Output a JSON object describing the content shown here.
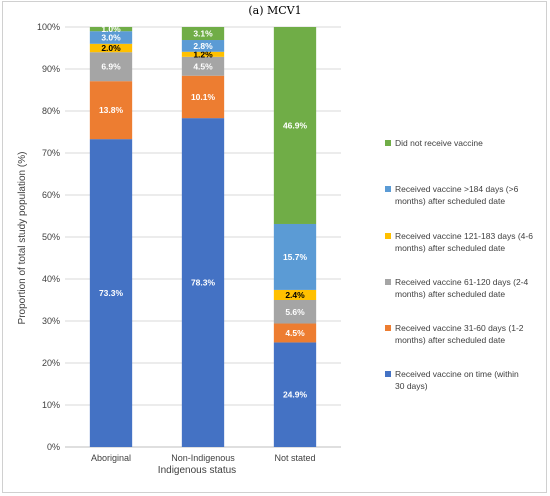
{
  "chart_data": {
    "type": "bar",
    "stacked": true,
    "title": "(a) MCV1",
    "xlabel": "Indigenous status",
    "ylabel": "Proportion of total study population (%)",
    "ylim": [
      0,
      100
    ],
    "yticks": [
      "0%",
      "10%",
      "20%",
      "30%",
      "40%",
      "50%",
      "60%",
      "70%",
      "80%",
      "90%",
      "100%"
    ],
    "categories": [
      "Aboriginal",
      "Non-Indigenous",
      "Not stated"
    ],
    "grid": true,
    "legend_position": "right",
    "series": [
      {
        "name": "Received vaccine on time (within 30 days)",
        "legend_lines": [
          "Received vaccine on time (within",
          "30 days)"
        ],
        "color": "#4472c4",
        "label_color": "#ffffff",
        "values": [
          73.3,
          78.3,
          24.9
        ],
        "labels": [
          "73.3%",
          "78.3%",
          "24.9%"
        ]
      },
      {
        "name": "Received vaccine 31-60 days (1-2 months) after scheduled date",
        "legend_lines": [
          "Received vaccine 31-60 days (1-2",
          "months) after scheduled date"
        ],
        "color": "#ed7d31",
        "label_color": "#ffffff",
        "values": [
          13.8,
          10.1,
          4.5
        ],
        "labels": [
          "13.8%",
          "10.1%",
          "4.5%"
        ]
      },
      {
        "name": "Received vaccine 61-120 days (2-4 months) after scheduled date",
        "legend_lines": [
          "Received vaccine 61-120 days (2-4",
          "months) after scheduled date"
        ],
        "color": "#a5a5a5",
        "label_color": "#ffffff",
        "values": [
          6.9,
          4.5,
          5.6
        ],
        "labels": [
          "6.9%",
          "4.5%",
          "5.6%"
        ]
      },
      {
        "name": "Received vaccine 121-183 days (4-6 months) after scheduled date",
        "legend_lines": [
          "Received vaccine 121-183 days (4-6",
          "months) after scheduled date"
        ],
        "color": "#ffc000",
        "label_color": "#000000",
        "values": [
          2.0,
          1.2,
          2.4
        ],
        "labels": [
          "2.0%",
          "1.2%",
          "2.4%"
        ]
      },
      {
        "name": "Received vaccine >184 days (>6 months) after scheduled date",
        "legend_lines": [
          "Received vaccine >184 days (>6",
          "months) after scheduled date"
        ],
        "color": "#5b9bd5",
        "label_color": "#ffffff",
        "values": [
          3.0,
          2.8,
          15.7
        ],
        "labels": [
          "3.0%",
          "2.8%",
          "15.7%"
        ]
      },
      {
        "name": "Did not receive vaccine",
        "legend_lines": [
          "Did not receive vaccine"
        ],
        "color": "#70ad47",
        "label_color": "#ffffff",
        "values": [
          1.0,
          3.1,
          46.9
        ],
        "labels": [
          "1.0%",
          "3.1%",
          "46.9%"
        ]
      }
    ]
  }
}
